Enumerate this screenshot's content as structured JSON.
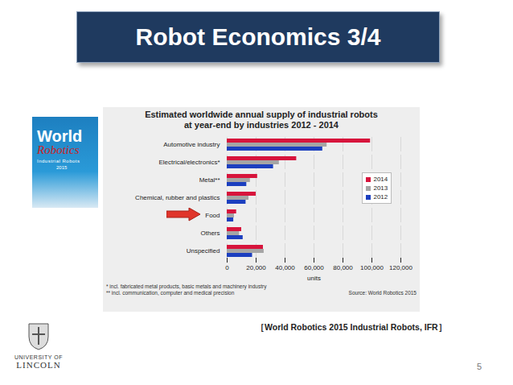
{
  "chart_data": {
    "type": "bar",
    "orientation": "horizontal",
    "title": "Estimated worldwide annual supply of industrial robots at year-end by industries 2012 - 2014",
    "categories": [
      "Automotive industry",
      "Electrical/electronics*",
      "Metal**",
      "Chemical, rubber and plastics",
      "Food",
      "Others",
      "Unspecified"
    ],
    "series": [
      {
        "name": "2014",
        "color": "#d7143c",
        "values": [
          99000,
          48000,
          21000,
          20000,
          6500,
          10000,
          25000
        ]
      },
      {
        "name": "2013",
        "color": "#a5a5a5",
        "values": [
          69000,
          36000,
          16000,
          15000,
          5000,
          8500,
          25500
        ]
      },
      {
        "name": "2012",
        "color": "#1c3fbf",
        "values": [
          66000,
          32000,
          13500,
          13000,
          4500,
          11000,
          17500
        ]
      }
    ],
    "x_label": "units",
    "xlim": [
      0,
      120000
    ],
    "xticks": [
      0,
      {
        "value": 20000,
        "label": "20,000"
      },
      {
        "value": 40000,
        "label": "40,000"
      },
      {
        "value": 60000,
        "label": "60,000"
      },
      {
        "value": 80000,
        "label": "80,000"
      },
      {
        "value": 100000,
        "label": "100,000"
      },
      {
        "value": 120000,
        "label": "120,000"
      }
    ],
    "grid": true,
    "legend": "right",
    "annotations": [
      "* incl. fabricated metal products, basic metals and machinery industry",
      "** incl. communication, computer and medical precision"
    ],
    "source": "Source: World Robotics 2015"
  },
  "slide": {
    "title": "Robot Economics 3/4",
    "caption": "［World Robotics 2015 Industrial Robots, IFR］",
    "page": "5",
    "logo": [
      "UNIVERSITY OF",
      "LINCOLN"
    ],
    "book": {
      "title": "World",
      "script": "Robotics",
      "subtitle": "Industrial Robots",
      "year": "2015"
    }
  }
}
